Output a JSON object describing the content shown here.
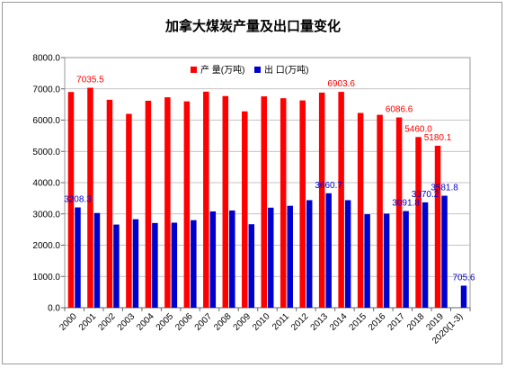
{
  "chart_data": {
    "type": "bar",
    "title": "加拿大煤炭产量及出口量变化",
    "categories": [
      "2000",
      "2001",
      "2002",
      "2003",
      "2004",
      "2005",
      "2006",
      "2007",
      "2008",
      "2009",
      "2010",
      "2011",
      "2012",
      "2013",
      "2014",
      "2015",
      "2016",
      "2017",
      "2018",
      "2019",
      "2020(1-3)"
    ],
    "series": [
      {
        "name": "产 量(万吨)",
        "color": "#ff0000",
        "label_color": "#ff0000",
        "values": [
          6900,
          7035.5,
          6650,
          6200,
          6620,
          6730,
          6600,
          6910,
          6770,
          6280,
          6760,
          6700,
          6630,
          6880,
          6903.6,
          6230,
          6170,
          6086.6,
          5460.0,
          5180.1,
          null
        ],
        "data_labels": {
          "1": "7035.5",
          "14": "6903.6",
          "17": "6086.6",
          "18": "5460.0",
          "19": "5180.1"
        }
      },
      {
        "name": "出 口(万吨)",
        "color": "#0000cc",
        "label_color": "#0000cc",
        "values": [
          3208.3,
          3030,
          2660,
          2830,
          2710,
          2720,
          2800,
          3080,
          3110,
          2670,
          3200,
          3260,
          3440,
          3660.7,
          3440,
          2990,
          3010,
          3091.8,
          3370.2,
          3581.8,
          705.6
        ],
        "data_labels": {
          "0": "3208.3",
          "13": "3660.7",
          "17": "3091.8",
          "18": "3370.2",
          "19": "3581.8",
          "20": "705.6"
        }
      }
    ],
    "ylim": [
      0,
      8000
    ],
    "yticks": [
      0,
      1000,
      2000,
      3000,
      4000,
      5000,
      6000,
      7000,
      8000
    ],
    "ytick_labels": [
      "0.0",
      "1000.0",
      "2000.0",
      "3000.0",
      "4000.0",
      "5000.0",
      "6000.0",
      "7000.0",
      "8000.0"
    ],
    "grid": true,
    "legend": "top-center"
  }
}
